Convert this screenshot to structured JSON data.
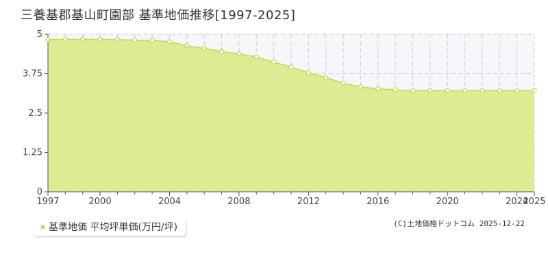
{
  "header": {
    "title": "三養基郡基山町園部 基準地価推移[1997-2025]"
  },
  "legend": {
    "label": "基準地価 平均坪単価(万円/坪)"
  },
  "footer": {
    "copyright": "(C)土地価格ドットコム 2025-12-22"
  },
  "colors": {
    "fill": "#dcec92",
    "line": "#bcd95a",
    "marker_fill": "#ffffff",
    "grid": "#cccccc",
    "axis": "#555555",
    "plot_background": "#f7f7fb"
  },
  "chart_data": {
    "type": "area",
    "title": "三養基郡基山町園部 基準地価推移[1997-2025]",
    "xlabel": "",
    "ylabel": "",
    "xlim": [
      1997,
      2025
    ],
    "ylim": [
      0,
      5
    ],
    "y_ticks": [
      0,
      1.25,
      2.5,
      3.75,
      5
    ],
    "y_tick_labels": [
      "0",
      "1.25",
      "2.5",
      "3.75",
      "5"
    ],
    "x_ticks": [
      1997,
      2000,
      2004,
      2008,
      2012,
      2016,
      2020,
      2024,
      2025
    ],
    "x_tick_labels": [
      "1997",
      "2000",
      "2004",
      "2008",
      "2012",
      "2016",
      "2020",
      "2024",
      "2025"
    ],
    "grid": true,
    "legend_position": "bottom-left",
    "series": [
      {
        "name": "基準地価 平均坪単価(万円/坪)",
        "x": [
          1997,
          1998,
          1999,
          2000,
          2001,
          2002,
          2003,
          2004,
          2005,
          2006,
          2007,
          2008,
          2009,
          2010,
          2011,
          2012,
          2013,
          2014,
          2015,
          2016,
          2017,
          2018,
          2019,
          2020,
          2021,
          2022,
          2023,
          2024,
          2025
        ],
        "values": [
          4.83,
          4.84,
          4.84,
          4.84,
          4.83,
          4.81,
          4.81,
          4.76,
          4.64,
          4.55,
          4.45,
          4.38,
          4.28,
          4.12,
          3.96,
          3.78,
          3.63,
          3.45,
          3.33,
          3.27,
          3.24,
          3.21,
          3.21,
          3.21,
          3.21,
          3.21,
          3.21,
          3.21,
          3.21
        ]
      }
    ]
  }
}
